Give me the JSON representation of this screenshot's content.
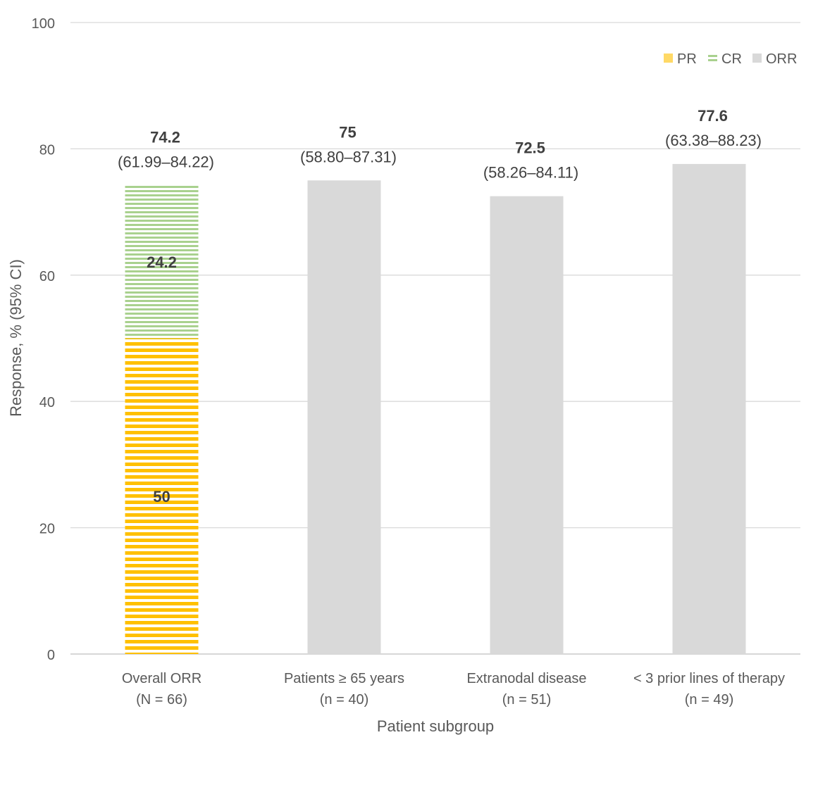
{
  "chart_data": {
    "type": "bar",
    "title": "",
    "xlabel": "Patient subgroup",
    "ylabel": "Response, % (95% CI)",
    "ylim": [
      0,
      100
    ],
    "yticks": [
      0,
      20,
      40,
      60,
      80,
      100
    ],
    "grid": true,
    "legend_position": "top-right",
    "legend": [
      "PR",
      "CR",
      "ORR"
    ],
    "categories": [
      {
        "line1": "Overall ORR",
        "line2": "(N = 66)"
      },
      {
        "line1": "Patients ≥ 65 years",
        "line2": "(n = 40)"
      },
      {
        "line1": "Extranodal disease",
        "line2": "(n = 51)"
      },
      {
        "line1": "< 3 prior lines of therapy",
        "line2": "(n = 49)"
      }
    ],
    "series": [
      {
        "name": "PR",
        "values": [
          50,
          null,
          null,
          null
        ],
        "labels": [
          "50",
          null,
          null,
          null
        ]
      },
      {
        "name": "CR",
        "values": [
          24.2,
          null,
          null,
          null
        ],
        "labels": [
          "24.2",
          null,
          null,
          null
        ]
      },
      {
        "name": "ORR",
        "values": [
          74.2,
          75,
          72.5,
          77.6
        ]
      }
    ],
    "totals": [
      {
        "value": "74.2",
        "ci": "(61.99–84.22)"
      },
      {
        "value": "75",
        "ci": "(58.80–87.31)"
      },
      {
        "value": "72.5",
        "ci": "(58.26–84.11)"
      },
      {
        "value": "77.6",
        "ci": "(63.38–88.23)"
      }
    ],
    "colors": {
      "PR": "#FFC000",
      "CR": "#A9D18E",
      "ORR": "#D9D9D9",
      "grid": "#D9D9D9",
      "text": "#595959",
      "label": "#404040"
    }
  }
}
